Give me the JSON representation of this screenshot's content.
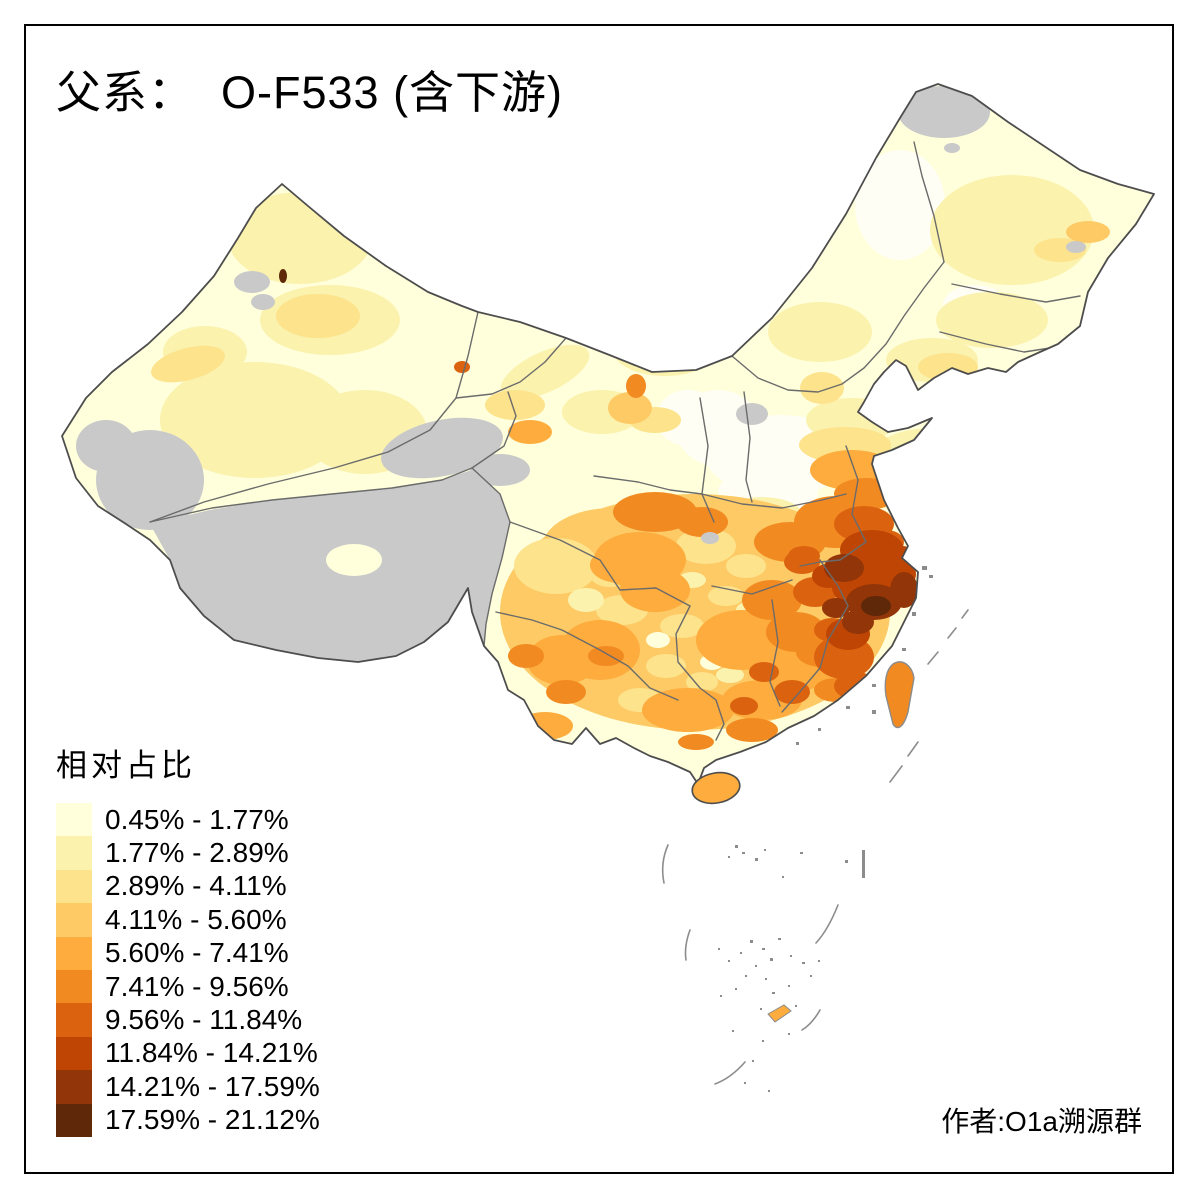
{
  "title": "父系：  O-F533 (含下游)",
  "legend": {
    "title": "相对占比",
    "bins": [
      {
        "range": "0.45% - 1.77%",
        "color": "#FFFFDC"
      },
      {
        "range": "1.77% - 2.89%",
        "color": "#FBF2AE"
      },
      {
        "range": "2.89% - 4.11%",
        "color": "#FDE38C"
      },
      {
        "range": "4.11% - 5.60%",
        "color": "#FDCA66"
      },
      {
        "range": "5.60% - 7.41%",
        "color": "#FDAC3D"
      },
      {
        "range": "7.41% - 9.56%",
        "color": "#F28A22"
      },
      {
        "range": "9.56% - 11.84%",
        "color": "#DB6310"
      },
      {
        "range": "11.84% - 14.21%",
        "color": "#BE4503"
      },
      {
        "range": "14.21% - 17.59%",
        "color": "#923508"
      },
      {
        "range": "17.59% - 21.12%",
        "color": "#5F2808"
      }
    ]
  },
  "credit": "作者:O1a溯源群",
  "map": {
    "type": "choropleth-china-prefectures",
    "no_data_color": "#C9C9C9",
    "pale_patch_color": "#FFFEF4",
    "country_border_color": "#4D4D4D",
    "province_border_color": "#6B6B6B",
    "islet_color": "#8C8C8C",
    "frame_color": "#000000",
    "background": "#FFFFFF"
  }
}
